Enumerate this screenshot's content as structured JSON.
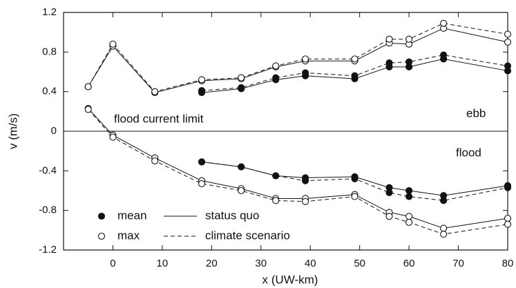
{
  "chart_data": {
    "type": "line",
    "x_label": "x (UW-km)",
    "y_label": "v (m/s)",
    "annotations": [
      "flood current limit",
      "ebb",
      "flood"
    ],
    "x": [
      -5,
      0,
      8.5,
      18,
      26,
      33,
      39,
      49,
      56,
      60,
      67,
      80
    ],
    "xlim": [
      -10,
      80
    ],
    "xticks": [
      0,
      10,
      20,
      30,
      40,
      50,
      60,
      70,
      80
    ],
    "ylim": [
      -1.2,
      1.2
    ],
    "yticks": [
      1.2,
      0.8,
      0.4,
      0,
      -0.4,
      -0.8,
      -1.2
    ],
    "zero_line": true,
    "color": "#111",
    "legend": {
      "markers": [
        {
          "label": "mean",
          "marker": "filled"
        },
        {
          "label": "max",
          "marker": "open"
        }
      ],
      "lines": [
        {
          "label": "status quo",
          "style": "solid"
        },
        {
          "label": "climate scenario",
          "style": "dashed"
        }
      ]
    },
    "series": [
      {
        "marker": "open",
        "style": "solid",
        "values": [
          0.45,
          0.86,
          0.39,
          0.51,
          0.53,
          0.65,
          0.71,
          0.71,
          0.89,
          0.88,
          1.04,
          0.9
        ]
      },
      {
        "marker": "open",
        "style": "dashed",
        "values": [
          0.45,
          0.88,
          0.4,
          0.52,
          0.54,
          0.66,
          0.73,
          0.73,
          0.93,
          0.93,
          1.09,
          0.98
        ]
      },
      {
        "marker": "filled",
        "style": "solid",
        "values": [
          null,
          null,
          null,
          0.39,
          0.43,
          0.52,
          0.56,
          0.53,
          0.65,
          0.65,
          0.73,
          0.61
        ]
      },
      {
        "marker": "filled",
        "style": "dashed",
        "values": [
          null,
          null,
          null,
          0.41,
          0.44,
          0.54,
          0.59,
          0.56,
          0.69,
          0.7,
          0.77,
          0.66
        ]
      },
      {
        "marker": "open",
        "style": "solid",
        "values": [
          0.23,
          -0.04,
          -0.27,
          -0.5,
          -0.58,
          -0.68,
          -0.68,
          -0.64,
          -0.82,
          -0.86,
          -0.98,
          -0.88
        ]
      },
      {
        "marker": "open",
        "style": "dashed",
        "values": [
          0.22,
          -0.06,
          -0.3,
          -0.53,
          -0.6,
          -0.7,
          -0.71,
          -0.66,
          -0.86,
          -0.92,
          -1.04,
          -0.94
        ]
      },
      {
        "marker": "filled",
        "style": "solid",
        "values": [
          null,
          null,
          null,
          -0.31,
          -0.36,
          -0.45,
          -0.47,
          -0.46,
          -0.57,
          -0.6,
          -0.65,
          -0.55
        ]
      },
      {
        "marker": "filled",
        "style": "dashed",
        "values": [
          null,
          null,
          null,
          -0.31,
          -0.36,
          -0.45,
          -0.5,
          -0.48,
          -0.62,
          -0.66,
          -0.7,
          -0.57
        ]
      }
    ]
  }
}
